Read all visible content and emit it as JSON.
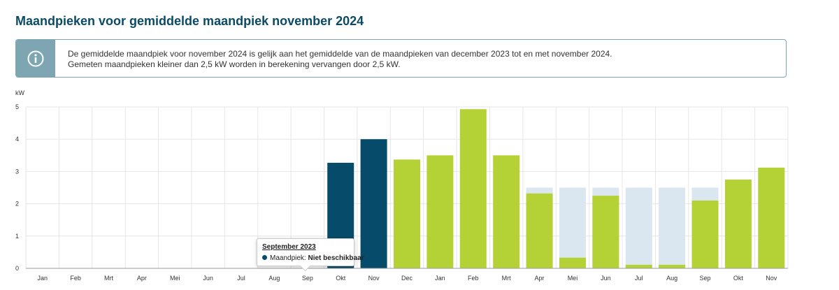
{
  "page": {
    "title": "Maandpieken voor gemiddelde maandpiek november 2024"
  },
  "info": {
    "line1": "De gemiddelde maandpiek voor november 2024 is gelijk aan het gemiddelde van de maandpieken van december 2023 tot en met november 2024.",
    "line2": "Gemeten maandpieken kleiner dan 2,5 kW worden in berekening vervangen door 2,5 kW.",
    "icon": "info-icon"
  },
  "tooltip": {
    "title": "September 2023",
    "label": "Maandpiek:",
    "value": "Niet beschikbaar"
  },
  "colors": {
    "previous_period": "#064b69",
    "calculation_period": "#b4d235",
    "minimum_fill": "#dbe7f0",
    "title": "#0b4a66"
  },
  "chart_data": {
    "type": "bar",
    "ylabel": "kW",
    "ylim": [
      0,
      5
    ],
    "yticks": [
      0,
      1,
      2,
      3,
      4,
      5
    ],
    "minimum_value": 2.5,
    "categories": [
      "Jan",
      "Feb",
      "Mrt",
      "Apr",
      "Mei",
      "Jun",
      "Jul",
      "Aug",
      "Sep",
      "Okt",
      "Nov",
      "Dec",
      "Jan",
      "Feb",
      "Mrt",
      "Apr",
      "Mei",
      "Jun",
      "Jul",
      "Aug",
      "Sep",
      "Okt",
      "Nov"
    ],
    "values": [
      null,
      null,
      null,
      null,
      null,
      null,
      null,
      null,
      null,
      3.27,
      4.0,
      3.37,
      3.5,
      4.93,
      3.5,
      2.32,
      0.33,
      2.25,
      0.11,
      0.11,
      2.1,
      2.75,
      3.12
    ],
    "periods": [
      "previous",
      "previous",
      "previous",
      "previous",
      "previous",
      "previous",
      "previous",
      "previous",
      "previous",
      "previous",
      "previous",
      "calculation",
      "calculation",
      "calculation",
      "calculation",
      "calculation",
      "calculation",
      "calculation",
      "calculation",
      "calculation",
      "calculation",
      "calculation",
      "calculation"
    ],
    "grid": true
  }
}
